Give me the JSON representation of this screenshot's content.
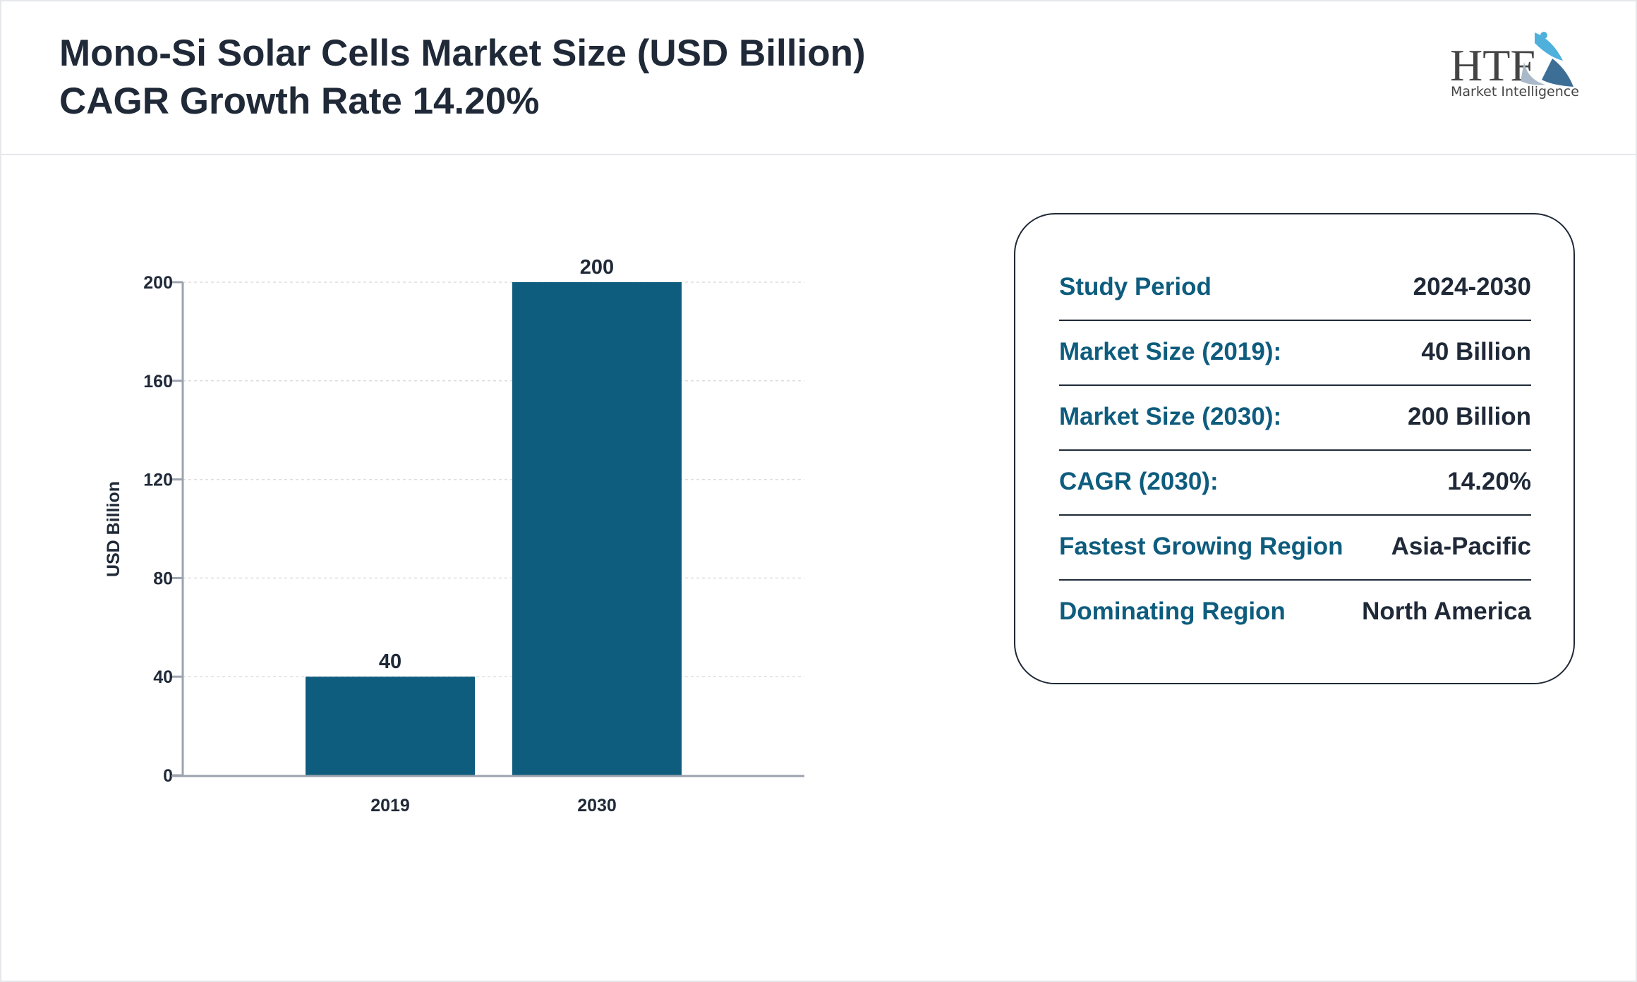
{
  "header": {
    "title_line1": "Mono-Si Solar Cells Market Size (USD Billion)",
    "title_line2": "CAGR Growth Rate 14.20%"
  },
  "logo": {
    "text": "HTF",
    "subtext": "Market Intelligence"
  },
  "chart_data": {
    "type": "bar",
    "categories": [
      "2019",
      "2030"
    ],
    "values": [
      40,
      200
    ],
    "data_labels": [
      "40",
      "200"
    ],
    "xlabel": "",
    "ylabel": "USD Billion",
    "ylim": [
      0,
      200
    ],
    "yticks": [
      0,
      40,
      80,
      120,
      160,
      200
    ],
    "grid": true,
    "bar_color": "#0e5c7e"
  },
  "summary": {
    "rows": [
      {
        "label": "Study Period",
        "value": "2024-2030"
      },
      {
        "label": "Market Size (2019):",
        "value": "40 Billion"
      },
      {
        "label": "Market Size (2030):",
        "value": "200 Billion"
      },
      {
        "label": "CAGR (2030):",
        "value": "14.20%"
      },
      {
        "label": "Fastest Growing Region",
        "value": "Asia-Pacific"
      },
      {
        "label": "Dominating Region",
        "value": "North America"
      }
    ]
  }
}
